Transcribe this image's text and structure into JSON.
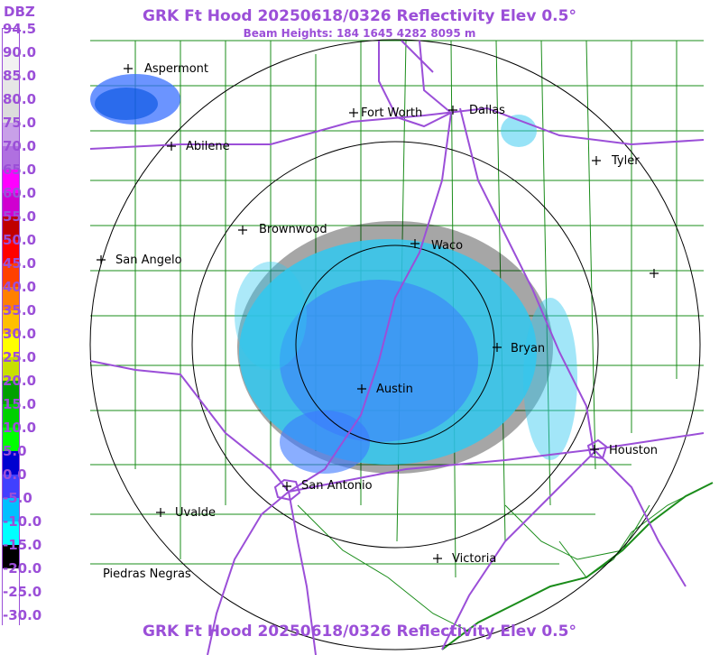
{
  "header": {
    "title": "GRK Ft Hood 20250618/0326 Reflectivity Elev 0.5°",
    "subtitle": "Beam Heights: 184 1645 4282 8095 m",
    "footer_title": "GRK Ft Hood 20250618/0326 Reflectivity Elev 0.5°"
  },
  "legend": {
    "unit": "DBZ",
    "labels": [
      "94.5",
      "90.0",
      "85.0",
      "80.0",
      "75.0",
      "70.0",
      "65.0",
      "60.0",
      "55.0",
      "50.0",
      "45.0",
      "40.0",
      "35.0",
      "30.0",
      "25.0",
      "20.0",
      "15.0",
      "10.0",
      "5.0",
      "0.0",
      "-5.0",
      "-10.0",
      "-15.0",
      "-20.0",
      "-25.0",
      "-30.0"
    ],
    "colors": [
      "#ffffff",
      "#f2f2f2",
      "#e6e6e6",
      "#dcdcdc",
      "#c8a0e8",
      "#b070e0",
      "#ff00ff",
      "#d000d0",
      "#c00000",
      "#ff0000",
      "#ff4000",
      "#ff8000",
      "#ffc000",
      "#ffff00",
      "#c8e000",
      "#00a000",
      "#00d000",
      "#00ff00",
      "#0000d0",
      "#4040ff",
      "#00c0ff",
      "#00ffff",
      "#000000",
      "#ffffff",
      "#ffffff",
      "#ffffff"
    ]
  },
  "map": {
    "radar_site": "GRK",
    "colors": {
      "counties": "#1a8c1a",
      "highways": "#9b4fd8",
      "range_rings": "#000000",
      "echo_light": "#00c8f0",
      "echo_mid": "#3264ff"
    },
    "cities": [
      {
        "name": "Aspermont"
      },
      {
        "name": "Fort Worth"
      },
      {
        "name": "Dallas"
      },
      {
        "name": "Abilene"
      },
      {
        "name": "Tyler"
      },
      {
        "name": "Brownwood"
      },
      {
        "name": "Waco"
      },
      {
        "name": "San Angelo"
      },
      {
        "name": "Bryan"
      },
      {
        "name": "Austin"
      },
      {
        "name": "Houston"
      },
      {
        "name": "San Antonio"
      },
      {
        "name": "Uvalde"
      },
      {
        "name": "Victoria"
      },
      {
        "name": "Piedras Negras"
      },
      {
        "name": ""
      }
    ]
  }
}
